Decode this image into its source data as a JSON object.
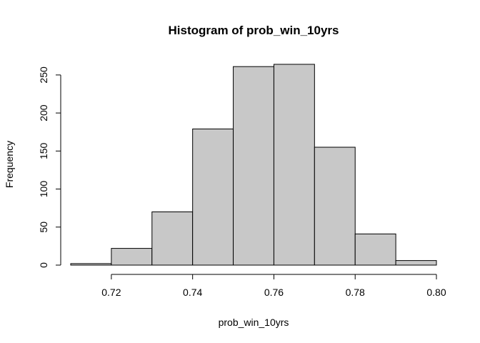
{
  "chart_data": {
    "type": "bar",
    "title": "Histogram of prob_win_10yrs",
    "xlabel": "prob_win_10yrs",
    "ylabel": "Frequency",
    "bins": [
      {
        "from": 0.71,
        "to": 0.72,
        "count": 2
      },
      {
        "from": 0.72,
        "to": 0.73,
        "count": 22
      },
      {
        "from": 0.73,
        "to": 0.74,
        "count": 70
      },
      {
        "from": 0.74,
        "to": 0.75,
        "count": 179
      },
      {
        "from": 0.75,
        "to": 0.76,
        "count": 261
      },
      {
        "from": 0.76,
        "to": 0.77,
        "count": 264
      },
      {
        "from": 0.77,
        "to": 0.78,
        "count": 155
      },
      {
        "from": 0.78,
        "to": 0.79,
        "count": 41
      },
      {
        "from": 0.79,
        "to": 0.8,
        "count": 6
      }
    ],
    "xlim": [
      0.71,
      0.8
    ],
    "ylim": [
      0,
      264
    ],
    "xticks": [
      0.72,
      0.74,
      0.76,
      0.78,
      0.8
    ],
    "xtick_labels": [
      "0.72",
      "0.74",
      "0.76",
      "0.78",
      "0.80"
    ],
    "yticks": [
      0,
      50,
      100,
      150,
      200,
      250
    ],
    "ytick_labels": [
      "0",
      "50",
      "100",
      "150",
      "200",
      "250"
    ],
    "bar_color": "#c8c8c8",
    "edge_color": "#000000"
  }
}
